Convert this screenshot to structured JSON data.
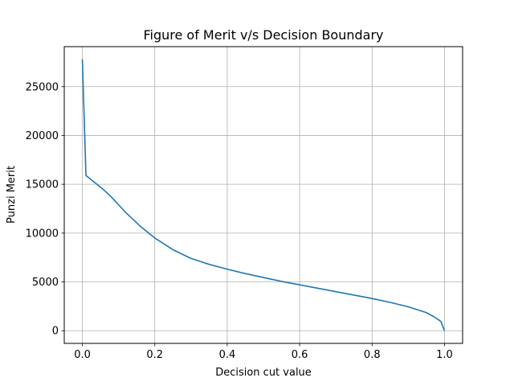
{
  "chart_data": {
    "type": "line",
    "title": "Figure of Merit v/s Decision Boundary",
    "xlabel": "Decision cut value",
    "ylabel": "Punzi Merit",
    "xlim": [
      -0.05,
      1.05
    ],
    "ylim": [
      -1300,
      29100
    ],
    "grid": true,
    "x_ticks": [
      0.0,
      0.2,
      0.4,
      0.6,
      0.8,
      1.0
    ],
    "x_tick_labels": [
      "0.0",
      "0.2",
      "0.4",
      "0.6",
      "0.8",
      "1.0"
    ],
    "y_ticks": [
      0,
      5000,
      10000,
      15000,
      20000,
      25000
    ],
    "y_tick_labels": [
      "0",
      "5000",
      "10000",
      "15000",
      "20000",
      "25000"
    ],
    "series": [
      {
        "color": "#1f77b4",
        "x": [
          0.0,
          0.01,
          0.02,
          0.04,
          0.06,
          0.08,
          0.1,
          0.12,
          0.14,
          0.16,
          0.18,
          0.2,
          0.25,
          0.3,
          0.35,
          0.4,
          0.45,
          0.5,
          0.55,
          0.6,
          0.65,
          0.7,
          0.75,
          0.8,
          0.85,
          0.9,
          0.95,
          0.97,
          0.99,
          1.0
        ],
        "y": [
          27800,
          15900,
          15600,
          15000,
          14400,
          13700,
          12900,
          12100,
          11400,
          10700,
          10100,
          9500,
          8300,
          7400,
          6800,
          6300,
          5850,
          5450,
          5050,
          4700,
          4350,
          4000,
          3650,
          3300,
          2900,
          2450,
          1850,
          1450,
          950,
          0
        ]
      }
    ]
  }
}
